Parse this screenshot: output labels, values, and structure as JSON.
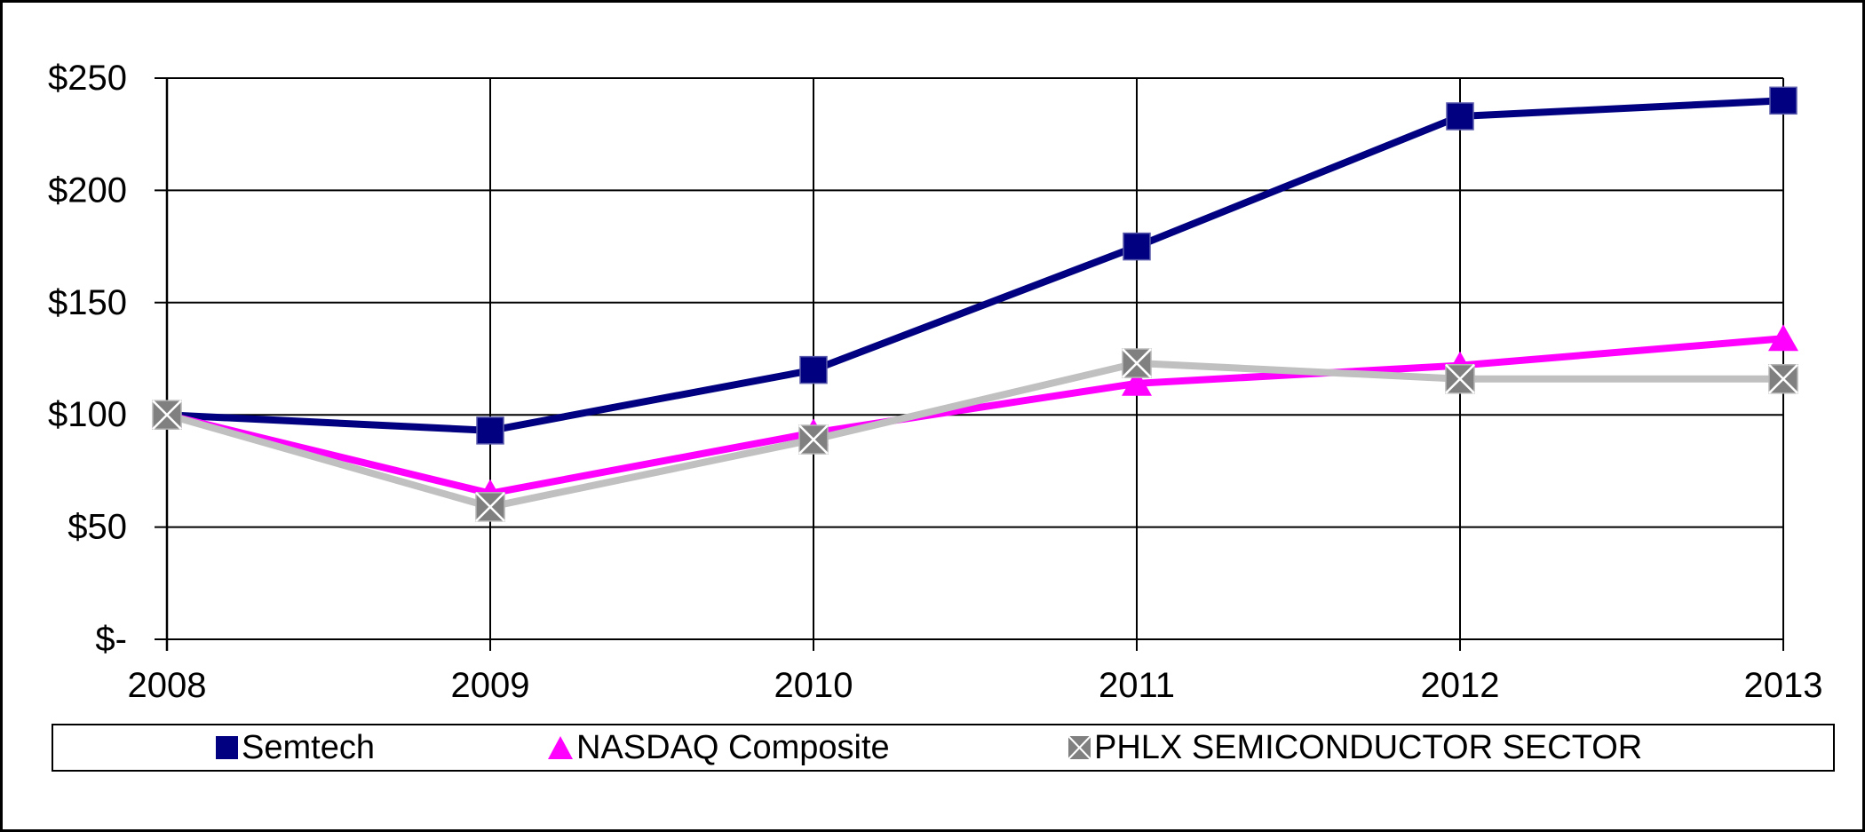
{
  "chart_data": {
    "type": "line",
    "title": "",
    "xlabel": "",
    "ylabel": "",
    "categories": [
      "2008",
      "2009",
      "2010",
      "2011",
      "2012",
      "2013"
    ],
    "ylim": [
      0,
      250
    ],
    "grid": true,
    "legend_position": "bottom",
    "y_ticks": [
      {
        "value": 250,
        "label": "$250"
      },
      {
        "value": 200,
        "label": "$200"
      },
      {
        "value": 150,
        "label": "$150"
      },
      {
        "value": 100,
        "label": "$100"
      },
      {
        "value": 50,
        "label": "$50"
      },
      {
        "value": 0,
        "label": "$-"
      }
    ],
    "series": [
      {
        "name": "Semtech",
        "marker": "square",
        "line_color": "#000080",
        "marker_color": "#000080",
        "values": [
          100,
          93,
          120,
          175,
          233,
          240
        ]
      },
      {
        "name": "NASDAQ Composite",
        "marker": "triangle",
        "line_color": "#FF00FF",
        "marker_color": "#FF00FF",
        "values": [
          100,
          65,
          92,
          114,
          122,
          134
        ]
      },
      {
        "name": "PHLX SEMICONDUCTOR SECTOR",
        "marker": "x-square",
        "line_color": "#C0C0C0",
        "marker_color": "#808080",
        "values": [
          100,
          59,
          89,
          123,
          116,
          116
        ]
      }
    ],
    "colors": {
      "grid": "#000000",
      "axis": "#000000",
      "text": "#000000",
      "background": "#FFFFFF"
    }
  }
}
